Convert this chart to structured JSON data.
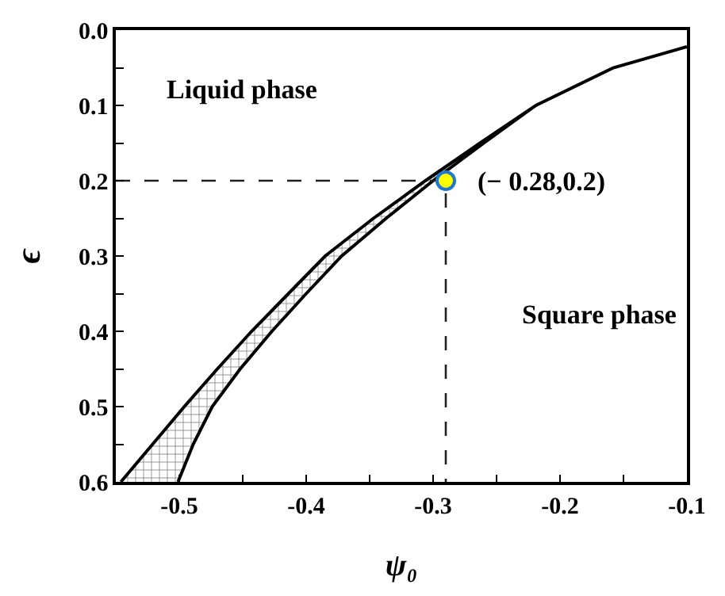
{
  "chart_data": {
    "type": "line",
    "xlabel": "ψ₀",
    "ylabel": "ϵ",
    "series": [
      {
        "type": "area",
        "color": "#000000",
        "x": [
          -0.546,
          -0.521,
          -0.496,
          -0.47,
          -0.443,
          -0.414,
          -0.385,
          -0.347,
          -0.306,
          -0.263,
          -0.219,
          -0.158,
          -0.1,
          -0.158,
          -0.219,
          -0.26,
          -0.3,
          -0.337,
          -0.372,
          -0.4,
          -0.427,
          -0.452,
          -0.474,
          -0.489,
          -0.501
        ],
        "values": [
          0.6,
          0.55,
          0.5,
          0.45,
          0.4,
          0.35,
          0.3,
          0.25,
          0.2,
          0.15,
          0.1,
          0.05,
          0.022,
          0.05,
          0.1,
          0.15,
          0.2,
          0.25,
          0.3,
          0.35,
          0.4,
          0.45,
          0.5,
          0.55,
          0.6
        ]
      },
      {
        "color": "#202020",
        "line_style": "dashed",
        "x": [
          -0.55,
          -0.29,
          -0.29
        ],
        "values": [
          0.2,
          0.2,
          0.6
        ]
      },
      {
        "type": "scatter",
        "color": "#ffff00",
        "x": [
          -0.29
        ],
        "values": [
          0.2
        ]
      }
    ],
    "annotations": [
      "Liquid phase",
      "Square phase",
      {
        "text": "(− 0.28,0.2)",
        "x": -0.29,
        "y": 0.2
      }
    ],
    "xlim": [
      -0.55,
      -0.1
    ],
    "ylim": [
      0.6,
      0.0
    ],
    "xticks": [
      {
        "value": -0.5,
        "label": "-0.5"
      },
      {
        "value": -0.45,
        "label": null
      },
      {
        "value": -0.4,
        "label": "-0.4"
      },
      {
        "value": -0.35,
        "label": null
      },
      {
        "value": -0.3,
        "label": "-0.3"
      },
      {
        "value": -0.25,
        "label": null
      },
      {
        "value": -0.2,
        "label": "-0.2"
      },
      {
        "value": -0.15,
        "label": null
      },
      {
        "value": -0.1,
        "label": "-0.1"
      }
    ],
    "yticks": [
      {
        "value": 0,
        "label": "0.0"
      },
      {
        "value": 0.05,
        "label": null
      },
      {
        "value": 0.1,
        "label": "0.1"
      },
      {
        "value": 0.15,
        "label": null
      },
      {
        "value": 0.2,
        "label": "0.2"
      },
      {
        "value": 0.25,
        "label": null
      },
      {
        "value": 0.3,
        "label": "0.3"
      },
      {
        "value": 0.35,
        "label": null
      },
      {
        "value": 0.4,
        "label": "0.4"
      },
      {
        "value": 0.45,
        "label": null
      },
      {
        "value": 0.5,
        "label": "0.5"
      },
      {
        "value": 0.55,
        "label": null
      },
      {
        "value": 0.6,
        "label": "0.6"
      }
    ]
  }
}
